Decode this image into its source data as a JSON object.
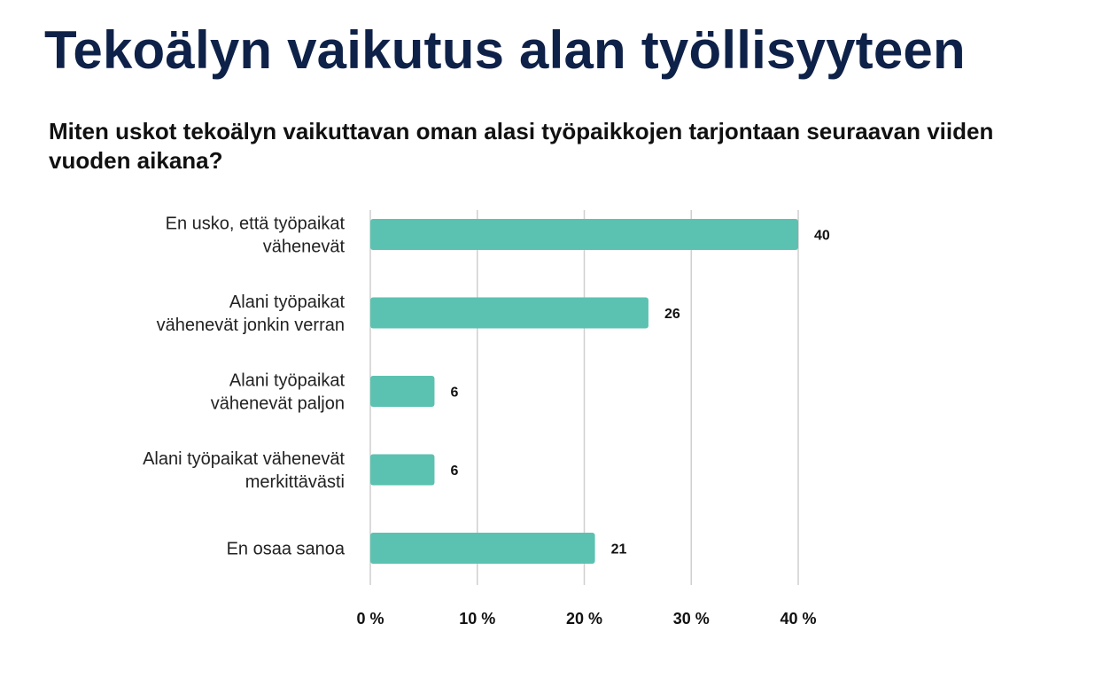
{
  "title": "Tekoälyn vaikutus alan työllisyyteen",
  "subtitle": "Miten uskot tekoälyn vaikuttavan oman alasi työpaikkojen tarjontaan seuraavan viiden vuoden aikana?",
  "colors": {
    "bar": "#5bc2b1",
    "title": "#0e2148",
    "grid": "#cfcfcf",
    "text": "#222222"
  },
  "chart_data": {
    "type": "bar",
    "orientation": "horizontal",
    "title": "Tekoälyn vaikutus alan työllisyyteen",
    "subtitle": "Miten uskot tekoälyn vaikuttavan oman alasi työpaikkojen tarjontaan seuraavan viiden vuoden aikana?",
    "categories": [
      [
        "En usko, että työpaikat",
        "vähenevät"
      ],
      [
        "Alani työpaikat",
        "vähenevät jonkin verran"
      ],
      [
        "Alani työpaikat",
        "vähenevät paljon"
      ],
      [
        "Alani työpaikat vähenevät",
        "merkittävästi"
      ],
      [
        "En osaa sanoa"
      ]
    ],
    "values": [
      40,
      26,
      6,
      6,
      21
    ],
    "data_labels": [
      "40",
      "26",
      "6",
      "6",
      "21"
    ],
    "xlim": [
      0,
      40
    ],
    "xticks": [
      0,
      10,
      20,
      30,
      40
    ],
    "xtick_labels": [
      "0 %",
      "10 %",
      "20 %",
      "30 %",
      "40 %"
    ],
    "grid": true,
    "legend": "none"
  }
}
